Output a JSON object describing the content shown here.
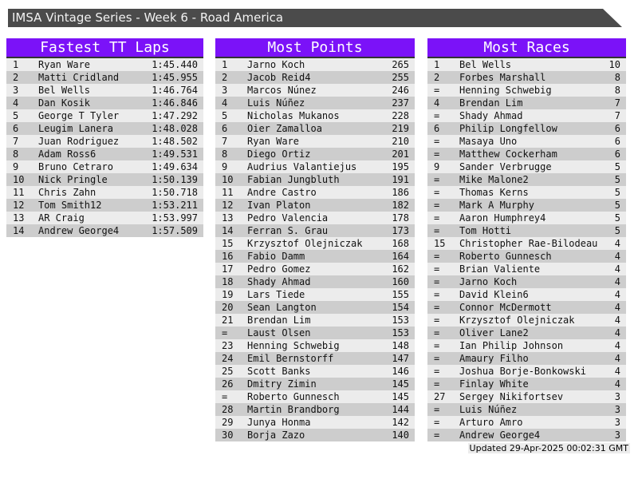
{
  "title_bar": "IMSA Vintage Series - Week 6 - Road America",
  "footer": {
    "updated": "Updated 29-Apr-2025 00:02:31 GMT"
  },
  "colors": {
    "header_purple": "#7B12F8",
    "titlebar_gray": "#4B4B4B",
    "row_light": "#ECECEC",
    "row_dark": "#CDCDCD"
  },
  "columns": [
    {
      "title": "Fastest TT Laps",
      "rows": [
        {
          "rank": "1",
          "name": "Ryan Ware",
          "value": "1:45.440"
        },
        {
          "rank": "2",
          "name": "Matti Cridland",
          "value": "1:45.955"
        },
        {
          "rank": "3",
          "name": "Bel Wells",
          "value": "1:46.764"
        },
        {
          "rank": "4",
          "name": "Dan Kosik",
          "value": "1:46.846"
        },
        {
          "rank": "5",
          "name": "George T Tyler",
          "value": "1:47.292"
        },
        {
          "rank": "6",
          "name": "Leugim Lanera",
          "value": "1:48.028"
        },
        {
          "rank": "7",
          "name": "Juan Rodriguez",
          "value": "1:48.502"
        },
        {
          "rank": "8",
          "name": "Adam Ross6",
          "value": "1:49.531"
        },
        {
          "rank": "9",
          "name": "Bruno Cetraro",
          "value": "1:49.634"
        },
        {
          "rank": "10",
          "name": "Nick Pringle",
          "value": "1:50.139"
        },
        {
          "rank": "11",
          "name": "Chris Zahn",
          "value": "1:50.718"
        },
        {
          "rank": "12",
          "name": "Tom Smith12",
          "value": "1:53.211"
        },
        {
          "rank": "13",
          "name": "AR Craig",
          "value": "1:53.997"
        },
        {
          "rank": "14",
          "name": "Andrew George4",
          "value": "1:57.509"
        }
      ]
    },
    {
      "title": "Most Points",
      "rows": [
        {
          "rank": "1",
          "name": "Jarno Koch",
          "value": "265"
        },
        {
          "rank": "2",
          "name": "Jacob Reid4",
          "value": "255"
        },
        {
          "rank": "3",
          "name": "Marcos Núnez",
          "value": "246"
        },
        {
          "rank": "4",
          "name": "Luis Núñez",
          "value": "237"
        },
        {
          "rank": "5",
          "name": "Nicholas Mukanos",
          "value": "228"
        },
        {
          "rank": "6",
          "name": "Oier Zamalloa",
          "value": "219"
        },
        {
          "rank": "7",
          "name": "Ryan Ware",
          "value": "210"
        },
        {
          "rank": "8",
          "name": "Diego Ortiz",
          "value": "201"
        },
        {
          "rank": "9",
          "name": "Audrius Valantiejus",
          "value": "195"
        },
        {
          "rank": "10",
          "name": "Fabian Jungbluth",
          "value": "191"
        },
        {
          "rank": "11",
          "name": "Andre Castro",
          "value": "186"
        },
        {
          "rank": "12",
          "name": "Ivan Platon",
          "value": "182"
        },
        {
          "rank": "13",
          "name": "Pedro Valencia",
          "value": "178"
        },
        {
          "rank": "14",
          "name": "Ferran S. Grau",
          "value": "173"
        },
        {
          "rank": "15",
          "name": "Krzysztof Olejniczak",
          "value": "168"
        },
        {
          "rank": "16",
          "name": "Fabio Damm",
          "value": "164"
        },
        {
          "rank": "17",
          "name": "Pedro Gomez",
          "value": "162"
        },
        {
          "rank": "18",
          "name": "Shady Ahmad",
          "value": "160"
        },
        {
          "rank": "19",
          "name": "Lars Tiede",
          "value": "155"
        },
        {
          "rank": "20",
          "name": "Sean Langton",
          "value": "154"
        },
        {
          "rank": "21",
          "name": "Brendan Lim",
          "value": "153"
        },
        {
          "rank": "=",
          "name": "Laust Olsen",
          "value": "153"
        },
        {
          "rank": "23",
          "name": "Henning Schwebig",
          "value": "148"
        },
        {
          "rank": "24",
          "name": "Emil Bernstorff",
          "value": "147"
        },
        {
          "rank": "25",
          "name": "Scott Banks",
          "value": "146"
        },
        {
          "rank": "26",
          "name": "Dmitry Zimin",
          "value": "145"
        },
        {
          "rank": "=",
          "name": "Roberto Gunnesch",
          "value": "145"
        },
        {
          "rank": "28",
          "name": "Martin Brandborg",
          "value": "144"
        },
        {
          "rank": "29",
          "name": "Junya Honma",
          "value": "142"
        },
        {
          "rank": "30",
          "name": "Borja Zazo",
          "value": "140"
        }
      ]
    },
    {
      "title": "Most Races",
      "rows": [
        {
          "rank": "1",
          "name": "Bel Wells",
          "value": "10"
        },
        {
          "rank": "2",
          "name": "Forbes Marshall",
          "value": "8"
        },
        {
          "rank": "=",
          "name": "Henning Schwebig",
          "value": "8"
        },
        {
          "rank": "4",
          "name": "Brendan Lim",
          "value": "7"
        },
        {
          "rank": "=",
          "name": "Shady Ahmad",
          "value": "7"
        },
        {
          "rank": "6",
          "name": "Philip Longfellow",
          "value": "6"
        },
        {
          "rank": "=",
          "name": "Masaya Uno",
          "value": "6"
        },
        {
          "rank": "=",
          "name": "Matthew Cockerham",
          "value": "6"
        },
        {
          "rank": "9",
          "name": "Sander Verbrugge",
          "value": "5"
        },
        {
          "rank": "=",
          "name": "Mike Malone2",
          "value": "5"
        },
        {
          "rank": "=",
          "name": "Thomas Kerns",
          "value": "5"
        },
        {
          "rank": "=",
          "name": "Mark A Murphy",
          "value": "5"
        },
        {
          "rank": "=",
          "name": "Aaron Humphrey4",
          "value": "5"
        },
        {
          "rank": "=",
          "name": "Tom Hotti",
          "value": "5"
        },
        {
          "rank": "15",
          "name": "Christopher Rae-Bilodeau",
          "value": "4"
        },
        {
          "rank": "=",
          "name": "Roberto Gunnesch",
          "value": "4"
        },
        {
          "rank": "=",
          "name": "Brian Valiente",
          "value": "4"
        },
        {
          "rank": "=",
          "name": "Jarno Koch",
          "value": "4"
        },
        {
          "rank": "=",
          "name": "David Klein6",
          "value": "4"
        },
        {
          "rank": "=",
          "name": "Connor McDermott",
          "value": "4"
        },
        {
          "rank": "=",
          "name": "Krzysztof Olejniczak",
          "value": "4"
        },
        {
          "rank": "=",
          "name": "Oliver Lane2",
          "value": "4"
        },
        {
          "rank": "=",
          "name": "Ian Philip Johnson",
          "value": "4"
        },
        {
          "rank": "=",
          "name": "Amaury Filho",
          "value": "4"
        },
        {
          "rank": "=",
          "name": "Joshua Borje-Bonkowski",
          "value": "4"
        },
        {
          "rank": "=",
          "name": "Finlay White",
          "value": "4"
        },
        {
          "rank": "27",
          "name": "Sergey Nikifortsev",
          "value": "3"
        },
        {
          "rank": "=",
          "name": "Luis Núñez",
          "value": "3"
        },
        {
          "rank": "=",
          "name": "Arturo Amro",
          "value": "3"
        },
        {
          "rank": "=",
          "name": "Andrew George4",
          "value": "3"
        }
      ]
    }
  ]
}
